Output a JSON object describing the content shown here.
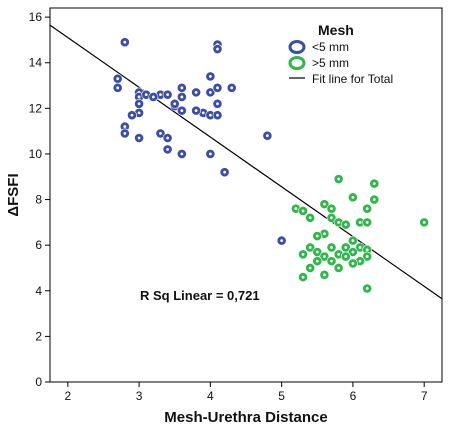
{
  "chart_data": {
    "type": "scatter",
    "xlabel": "Mesh-Urethra Distance",
    "ylabel": "ΔFSFI",
    "xlim": [
      1.75,
      7.25
    ],
    "ylim": [
      0,
      16.4
    ],
    "xticks": [
      "2",
      "3",
      "4",
      "5",
      "6",
      "7"
    ],
    "yticks": [
      "0",
      "2",
      "4",
      "6",
      "8",
      "10",
      "12",
      "14",
      "16"
    ],
    "grid": false,
    "legend": {
      "title": "Mesh",
      "position": "top-right",
      "items": [
        {
          "label": "<5 mm",
          "kind": "marker",
          "color": "#3a4ea8"
        },
        {
          "label": ">5 mm",
          "kind": "marker",
          "color": "#2fb84a"
        },
        {
          "label": "Fit line for Total",
          "kind": "line",
          "color": "#000000"
        }
      ]
    },
    "annotation": "R Sq Linear = 0,721",
    "fit_line": {
      "x": [
        1.75,
        7.25
      ],
      "y": [
        15.65,
        3.65
      ],
      "color": "#000000"
    },
    "series": [
      {
        "name": "<5 mm",
        "color": "#3a4ea8",
        "points": [
          [
            2.8,
            14.9
          ],
          [
            4.1,
            14.8
          ],
          [
            4.1,
            14.6
          ],
          [
            2.7,
            13.3
          ],
          [
            2.7,
            12.9
          ],
          [
            3.0,
            12.7
          ],
          [
            3.0,
            12.5
          ],
          [
            3.0,
            12.2
          ],
          [
            3.1,
            12.6
          ],
          [
            3.3,
            12.6
          ],
          [
            3.4,
            12.6
          ],
          [
            3.6,
            12.5
          ],
          [
            3.6,
            12.9
          ],
          [
            3.8,
            12.7
          ],
          [
            4.0,
            12.7
          ],
          [
            4.1,
            12.9
          ],
          [
            4.3,
            12.9
          ],
          [
            4.0,
            13.4
          ],
          [
            3.5,
            12.1
          ],
          [
            3.6,
            11.9
          ],
          [
            3.9,
            11.8
          ],
          [
            3.0,
            11.8
          ],
          [
            2.9,
            11.7
          ],
          [
            3.5,
            12.2
          ],
          [
            4.0,
            11.7
          ],
          [
            4.1,
            11.7
          ],
          [
            4.1,
            12.2
          ],
          [
            3.8,
            11.9
          ],
          [
            2.8,
            11.2
          ],
          [
            2.8,
            10.9
          ],
          [
            3.3,
            10.9
          ],
          [
            3.4,
            10.7
          ],
          [
            3.0,
            10.7
          ],
          [
            3.4,
            10.2
          ],
          [
            3.6,
            10.0
          ],
          [
            4.0,
            10.0
          ],
          [
            4.2,
            9.2
          ],
          [
            4.8,
            10.8
          ],
          [
            5.0,
            6.2
          ],
          [
            3.2,
            12.5
          ]
        ]
      },
      {
        "name": ">5 mm",
        "color": "#2fb84a",
        "points": [
          [
            5.8,
            8.9
          ],
          [
            6.3,
            8.7
          ],
          [
            6.0,
            8.1
          ],
          [
            6.3,
            8.0
          ],
          [
            5.6,
            7.8
          ],
          [
            5.2,
            7.6
          ],
          [
            5.3,
            7.5
          ],
          [
            5.7,
            7.6
          ],
          [
            6.2,
            7.6
          ],
          [
            5.4,
            7.2
          ],
          [
            5.7,
            7.2
          ],
          [
            5.8,
            7.0
          ],
          [
            5.9,
            6.9
          ],
          [
            6.1,
            7.0
          ],
          [
            6.2,
            7.0
          ],
          [
            7.0,
            7.0
          ],
          [
            5.6,
            6.5
          ],
          [
            5.5,
            6.4
          ],
          [
            6.0,
            6.2
          ],
          [
            5.4,
            5.9
          ],
          [
            5.7,
            5.9
          ],
          [
            5.9,
            5.9
          ],
          [
            6.1,
            5.9
          ],
          [
            6.2,
            5.8
          ],
          [
            5.5,
            5.7
          ],
          [
            5.6,
            5.5
          ],
          [
            5.8,
            5.6
          ],
          [
            6.0,
            5.7
          ],
          [
            6.2,
            5.5
          ],
          [
            5.3,
            5.6
          ],
          [
            5.5,
            5.3
          ],
          [
            5.7,
            5.3
          ],
          [
            5.9,
            5.5
          ],
          [
            6.1,
            5.3
          ],
          [
            5.4,
            5.0
          ],
          [
            5.8,
            5.0
          ],
          [
            6.0,
            5.2
          ],
          [
            5.3,
            4.6
          ],
          [
            5.6,
            4.7
          ],
          [
            6.2,
            4.1
          ]
        ]
      }
    ]
  }
}
